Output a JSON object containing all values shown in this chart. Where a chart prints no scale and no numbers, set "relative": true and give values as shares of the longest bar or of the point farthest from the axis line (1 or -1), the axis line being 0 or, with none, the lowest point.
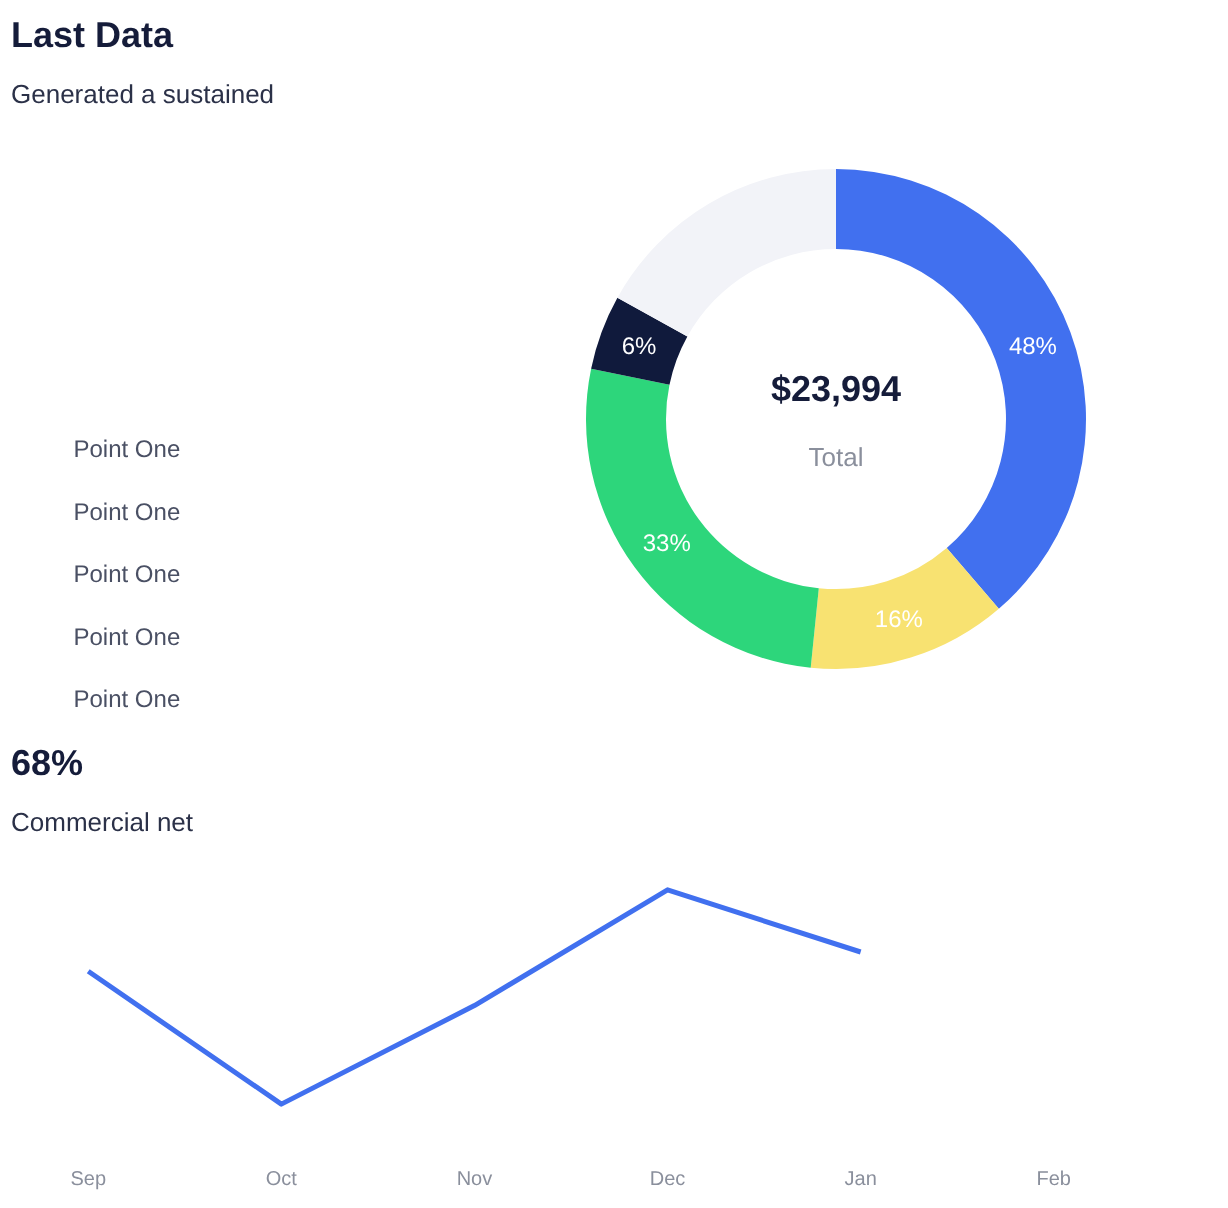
{
  "chart_data": [
    {
      "type": "donut",
      "title": "Last Data",
      "subtitle": "Generated a sustained",
      "categories": [
        null,
        null,
        null,
        null,
        null
      ],
      "values": [
        48,
        16,
        33,
        6,
        21
      ],
      "colors": [
        "#4170ef",
        "#f8e271",
        "#2dd67b",
        "#101a3c",
        "#f2f3f8"
      ],
      "value_labels": [
        "48%",
        "16%",
        "33%",
        "6%",
        null
      ],
      "annotations": [
        "$23,994",
        "Total",
        "Point One",
        "Point One",
        "Point One",
        "Point One",
        "Point One"
      ]
    },
    {
      "type": "line",
      "title": "68%",
      "subtitle": "Commercial net",
      "relative": true,
      "categories": [
        "Sep",
        "Oct",
        "Nov",
        "Dec",
        "Jan",
        "Feb"
      ],
      "series": [
        {
          "color": "#4170ef",
          "values": [
            0.62,
            0,
            0.46,
            1,
            0.71,
            null
          ]
        }
      ],
      "grid": false,
      "marker": "none",
      "line_style": "solid"
    }
  ]
}
